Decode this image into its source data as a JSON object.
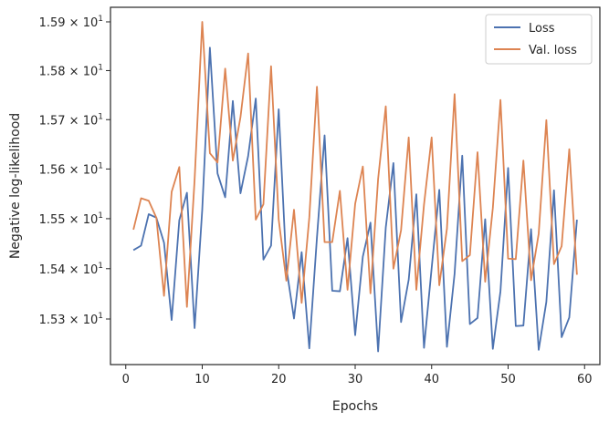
{
  "chart_data": {
    "type": "line",
    "title": "",
    "xlabel": "Epochs",
    "ylabel": "Negative log-likelihood",
    "xlim": [
      -2.0,
      62.0
    ],
    "ylim": [
      15.21,
      15.93
    ],
    "yscale": "log",
    "grid": false,
    "legend_position": "top-right",
    "x_ticks": [
      {
        "value": 0,
        "label": "0"
      },
      {
        "value": 10,
        "label": "10"
      },
      {
        "value": 20,
        "label": "20"
      },
      {
        "value": 30,
        "label": "30"
      },
      {
        "value": 40,
        "label": "40"
      },
      {
        "value": 50,
        "label": "50"
      },
      {
        "value": 60,
        "label": "60"
      }
    ],
    "y_ticks": [
      {
        "value": 15.3,
        "mantissa": "1.53",
        "exp_label": "1"
      },
      {
        "value": 15.4,
        "mantissa": "1.54",
        "exp_label": "1"
      },
      {
        "value": 15.5,
        "mantissa": "1.55",
        "exp_label": "1"
      },
      {
        "value": 15.6,
        "mantissa": "1.56",
        "exp_label": "1"
      },
      {
        "value": 15.7,
        "mantissa": "1.57",
        "exp_label": "1"
      },
      {
        "value": 15.8,
        "mantissa": "1.58",
        "exp_label": "1"
      },
      {
        "value": 15.9,
        "mantissa": "1.59",
        "exp_label": "1"
      }
    ],
    "x": [
      1,
      2,
      3,
      4,
      5,
      6,
      7,
      8,
      9,
      10,
      11,
      12,
      13,
      14,
      15,
      16,
      17,
      18,
      19,
      20,
      21,
      22,
      23,
      24,
      25,
      26,
      27,
      28,
      29,
      30,
      31,
      32,
      33,
      34,
      35,
      36,
      37,
      38,
      39,
      40,
      41,
      42,
      43,
      44,
      45,
      46,
      47,
      48,
      49,
      50,
      51,
      52,
      53,
      54,
      55,
      56,
      57,
      58,
      59
    ],
    "series": [
      {
        "name": "Loss",
        "color": "#4c72b0",
        "values": [
          15.437,
          15.446,
          15.509,
          15.502,
          15.452,
          15.298,
          15.497,
          15.552,
          15.282,
          15.518,
          15.847,
          15.591,
          15.543,
          15.738,
          15.551,
          15.626,
          15.743,
          15.418,
          15.446,
          15.721,
          15.402,
          15.301,
          15.433,
          15.242,
          15.462,
          15.668,
          15.356,
          15.355,
          15.461,
          15.268,
          15.424,
          15.492,
          15.236,
          15.482,
          15.612,
          15.294,
          15.378,
          15.549,
          15.243,
          15.401,
          15.558,
          15.245,
          15.39,
          15.627,
          15.29,
          15.302,
          15.499,
          15.241,
          15.355,
          15.602,
          15.286,
          15.287,
          15.479,
          15.239,
          15.334,
          15.557,
          15.264,
          15.303,
          15.498
        ]
      },
      {
        "name": "Val. loss",
        "color": "#dd8452",
        "values": [
          15.478,
          15.541,
          15.536,
          15.502,
          15.346,
          15.554,
          15.604,
          15.324,
          15.578,
          15.9,
          15.632,
          15.613,
          15.804,
          15.617,
          15.705,
          15.835,
          15.498,
          15.529,
          15.809,
          15.498,
          15.376,
          15.518,
          15.332,
          15.502,
          15.767,
          15.453,
          15.453,
          15.556,
          15.358,
          15.53,
          15.605,
          15.351,
          15.58,
          15.727,
          15.4,
          15.477,
          15.664,
          15.358,
          15.528,
          15.664,
          15.367,
          15.48,
          15.752,
          15.415,
          15.427,
          15.634,
          15.374,
          15.521,
          15.74,
          15.42,
          15.419,
          15.617,
          15.377,
          15.47,
          15.699,
          15.409,
          15.445,
          15.64,
          15.388
        ]
      }
    ]
  }
}
